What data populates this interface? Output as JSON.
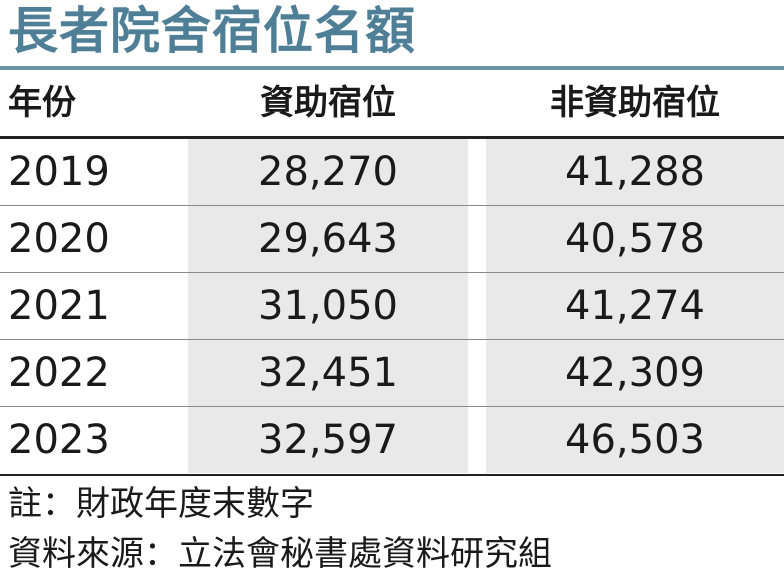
{
  "title": "長者院舍宿位名額",
  "headers": {
    "year": "年份",
    "subsidised": "資助宿位",
    "non_subsidised": "非資助宿位"
  },
  "rows": [
    {
      "year": "2019",
      "subsidised": "28,270",
      "non_subsidised": "41,288"
    },
    {
      "year": "2020",
      "subsidised": "29,643",
      "non_subsidised": "40,578"
    },
    {
      "year": "2021",
      "subsidised": "31,050",
      "non_subsidised": "41,274"
    },
    {
      "year": "2022",
      "subsidised": "32,451",
      "non_subsidised": "42,309"
    },
    {
      "year": "2023",
      "subsidised": "32,597",
      "non_subsidised": "46,503"
    }
  ],
  "notes": {
    "note": "註：財政年度末數字",
    "source": "資料來源：立法會秘書處資料研究組"
  },
  "colors": {
    "title": "#4f7f96",
    "title_rule": "#6f93a6",
    "shade": "#e9e9e9"
  }
}
